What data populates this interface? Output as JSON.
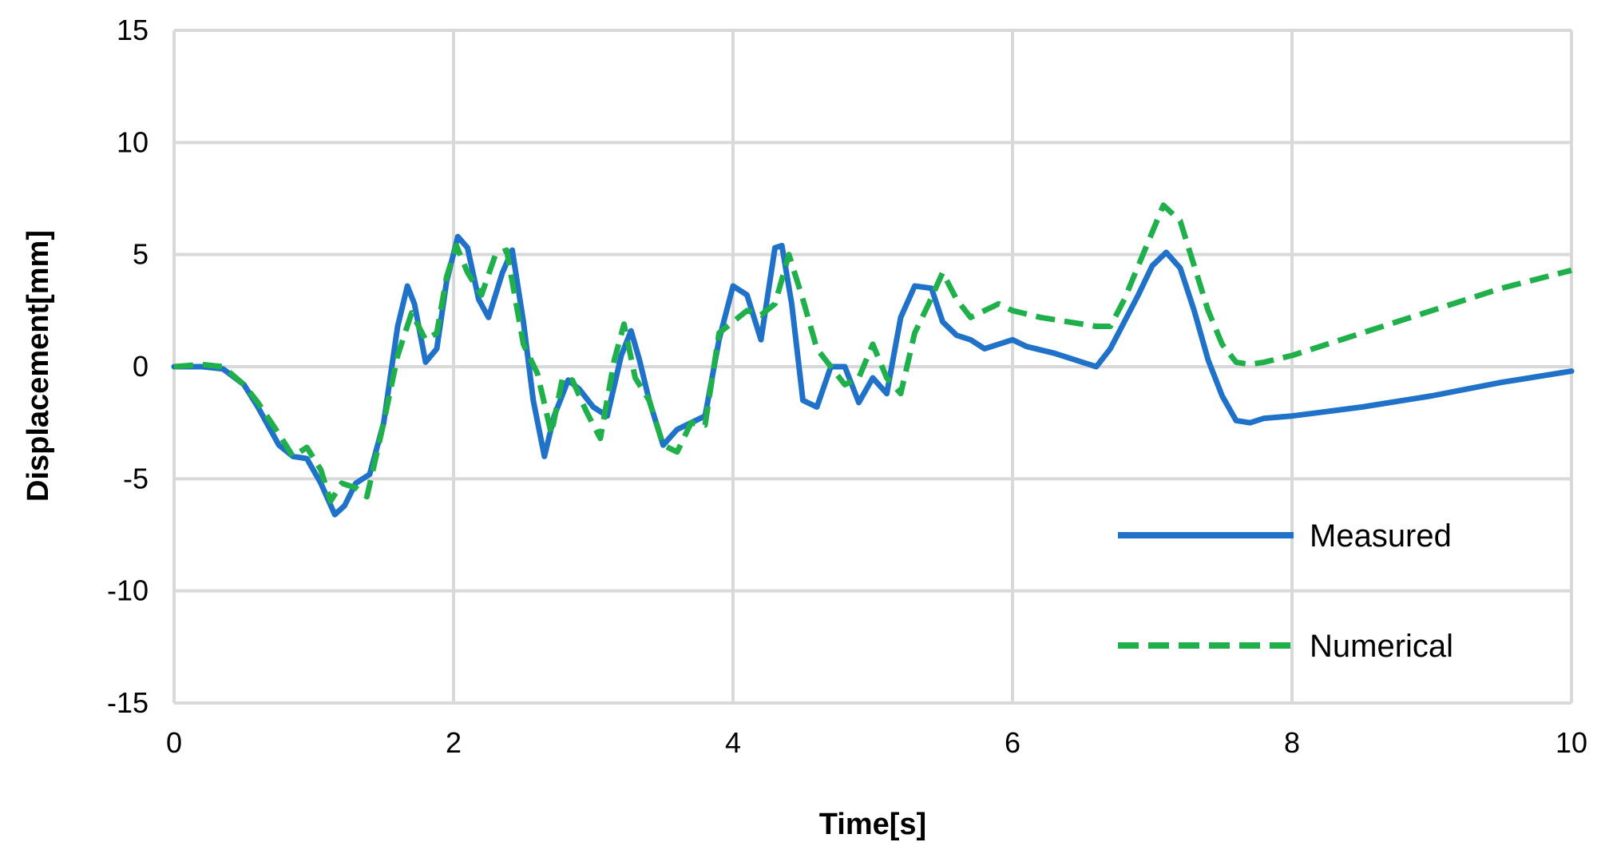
{
  "chart_data": {
    "type": "line",
    "title": "",
    "xlabel": "Time[s]",
    "ylabel": "Displacement[mm]",
    "xlim": [
      0,
      10
    ],
    "ylim": [
      -15,
      15
    ],
    "xticks": [
      0,
      2,
      4,
      6,
      8,
      10
    ],
    "yticks": [
      -15,
      -10,
      -5,
      0,
      5,
      10,
      15
    ],
    "grid": true,
    "legend_position": "bottom-right",
    "series": [
      {
        "name": "Measured",
        "color": "#1f72c8",
        "style": "solid",
        "x": [
          0,
          0.2,
          0.35,
          0.5,
          0.6,
          0.75,
          0.85,
          0.95,
          1.05,
          1.15,
          1.22,
          1.3,
          1.4,
          1.5,
          1.6,
          1.67,
          1.72,
          1.8,
          1.88,
          1.95,
          2.03,
          2.1,
          2.18,
          2.25,
          2.35,
          2.42,
          2.5,
          2.57,
          2.65,
          2.72,
          2.82,
          2.9,
          3.0,
          3.1,
          3.2,
          3.27,
          3.33,
          3.4,
          3.5,
          3.6,
          3.7,
          3.8,
          3.9,
          4.0,
          4.1,
          4.2,
          4.3,
          4.35,
          4.42,
          4.5,
          4.6,
          4.7,
          4.8,
          4.9,
          5.0,
          5.1,
          5.2,
          5.3,
          5.42,
          5.5,
          5.6,
          5.7,
          5.8,
          5.9,
          6.0,
          6.1,
          6.3,
          6.5,
          6.6,
          6.7,
          6.8,
          6.9,
          7.0,
          7.1,
          7.2,
          7.3,
          7.4,
          7.5,
          7.6,
          7.7,
          7.8,
          8.0,
          8.5,
          9.0,
          9.5,
          10.0
        ],
        "y": [
          0,
          0,
          -0.1,
          -0.8,
          -1.8,
          -3.5,
          -4.0,
          -4.1,
          -5.2,
          -6.6,
          -6.2,
          -5.2,
          -4.8,
          -2.5,
          1.8,
          3.6,
          2.8,
          0.2,
          0.8,
          3.8,
          5.8,
          5.3,
          3.0,
          2.2,
          4.2,
          5.2,
          2.0,
          -1.5,
          -4.0,
          -2.2,
          -0.6,
          -1.0,
          -1.8,
          -2.2,
          0.5,
          1.6,
          0.3,
          -1.5,
          -3.5,
          -2.8,
          -2.5,
          -2.2,
          1.2,
          3.6,
          3.2,
          1.2,
          5.3,
          5.4,
          2.8,
          -1.5,
          -1.8,
          0.0,
          0.0,
          -1.6,
          -0.5,
          -1.2,
          2.2,
          3.6,
          3.5,
          2.0,
          1.4,
          1.2,
          0.8,
          1.0,
          1.2,
          0.9,
          0.6,
          0.2,
          0.0,
          0.8,
          2.0,
          3.2,
          4.5,
          5.1,
          4.4,
          2.5,
          0.3,
          -1.3,
          -2.4,
          -2.5,
          -2.3,
          -2.2,
          -1.8,
          -1.3,
          -0.7,
          -0.2
        ]
      },
      {
        "name": "Numerical",
        "color": "#1fb04b",
        "style": "dashed",
        "x": [
          0,
          0.2,
          0.35,
          0.5,
          0.6,
          0.75,
          0.85,
          0.95,
          1.05,
          1.12,
          1.2,
          1.3,
          1.38,
          1.5,
          1.6,
          1.7,
          1.8,
          1.88,
          1.95,
          2.02,
          2.1,
          2.2,
          2.3,
          2.38,
          2.5,
          2.6,
          2.7,
          2.78,
          2.85,
          2.95,
          3.05,
          3.15,
          3.22,
          3.3,
          3.4,
          3.5,
          3.6,
          3.7,
          3.8,
          3.9,
          4.0,
          4.1,
          4.2,
          4.3,
          4.4,
          4.5,
          4.6,
          4.7,
          4.8,
          4.9,
          5.0,
          5.1,
          5.2,
          5.3,
          5.4,
          5.5,
          5.6,
          5.7,
          5.8,
          5.9,
          6.0,
          6.2,
          6.4,
          6.6,
          6.7,
          6.8,
          6.9,
          7.0,
          7.08,
          7.2,
          7.3,
          7.4,
          7.5,
          7.6,
          7.7,
          7.8,
          8.0,
          8.5,
          9.0,
          9.5,
          10.0
        ],
        "y": [
          0,
          0.1,
          0,
          -0.8,
          -1.6,
          -3.0,
          -4.0,
          -3.6,
          -4.6,
          -6.0,
          -5.2,
          -5.4,
          -5.8,
          -2.5,
          0.5,
          2.4,
          1.2,
          1.5,
          4.0,
          5.4,
          4.2,
          3.2,
          5.0,
          5.2,
          1.0,
          -0.3,
          -3.0,
          -0.5,
          -0.6,
          -2.0,
          -3.2,
          0.3,
          1.9,
          -0.5,
          -1.5,
          -3.5,
          -3.8,
          -2.5,
          -2.6,
          1.5,
          2.0,
          2.5,
          2.3,
          2.8,
          5.0,
          3.0,
          0.8,
          0.0,
          -0.8,
          -0.5,
          1.0,
          -0.5,
          -1.2,
          1.5,
          2.8,
          4.2,
          3.0,
          2.2,
          2.5,
          2.8,
          2.5,
          2.2,
          2.0,
          1.8,
          1.8,
          3.0,
          4.5,
          6.0,
          7.2,
          6.5,
          4.5,
          2.5,
          1.0,
          0.2,
          0.1,
          0.2,
          0.5,
          1.5,
          2.5,
          3.5,
          4.3
        ]
      }
    ]
  }
}
